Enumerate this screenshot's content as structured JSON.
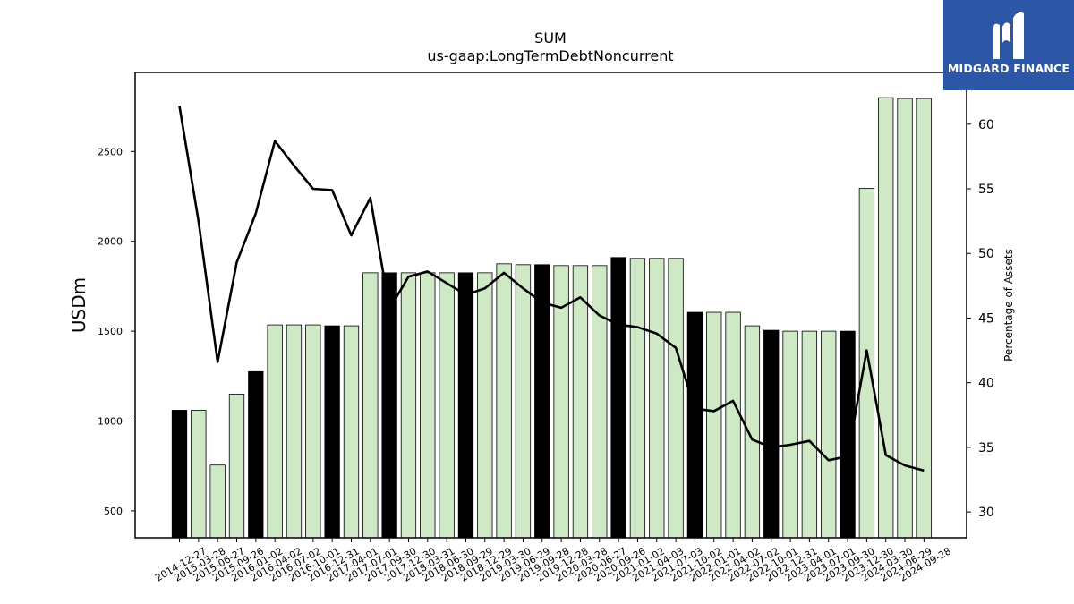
{
  "brand": {
    "name": "MIDGARD FINANCE",
    "logo_color": "#2b57a6"
  },
  "chart_data": {
    "type": "bar",
    "title": "SUM",
    "subtitle": "us-gaap:LongTermDebtNoncurrent",
    "ylabel": "USDm",
    "y2label": "Percentage of Assets",
    "ylim": [
      350,
      2940
    ],
    "y2lim": [
      28,
      64
    ],
    "yticks": [
      500,
      1000,
      1500,
      2000,
      2500
    ],
    "y2ticks": [
      30,
      35,
      40,
      45,
      50,
      55,
      60
    ],
    "categories": [
      "2014-12-27",
      "2015-03-28",
      "2015-06-27",
      "2015-09-26",
      "2016-01-02",
      "2016-04-02",
      "2016-07-02",
      "2016-10-01",
      "2016-12-31",
      "2017-04-01",
      "2017-07-01",
      "2017-09-30",
      "2017-12-30",
      "2018-03-31",
      "2018-06-30",
      "2018-09-29",
      "2018-12-29",
      "2019-03-30",
      "2019-06-29",
      "2019-09-28",
      "2019-12-28",
      "2020-03-28",
      "2020-06-27",
      "2020-09-26",
      "2021-01-02",
      "2021-04-03",
      "2021-07-03",
      "2021-10-02",
      "2022-01-01",
      "2022-04-02",
      "2022-07-02",
      "2022-10-01",
      "2022-12-31",
      "2023-04-01",
      "2023-07-01",
      "2023-09-30",
      "2023-12-30",
      "2024-03-30",
      "2024-06-29",
      "2024-09-28"
    ],
    "series": [
      {
        "kind": "bar",
        "axis": "left",
        "values": [
          1060,
          1060,
          755,
          1150,
          1275,
          1535,
          1535,
          1535,
          1530,
          1530,
          1825,
          1825,
          1825,
          1825,
          1825,
          1825,
          1825,
          1875,
          1870,
          1870,
          1865,
          1865,
          1865,
          1910,
          1905,
          1905,
          1905,
          1605,
          1605,
          1605,
          1530,
          1505,
          1500,
          1500,
          1500,
          1500,
          2295,
          2800,
          2795,
          2795
        ],
        "highlight": [
          true,
          false,
          false,
          false,
          true,
          false,
          false,
          false,
          true,
          false,
          false,
          true,
          false,
          false,
          false,
          true,
          false,
          false,
          false,
          true,
          false,
          false,
          false,
          true,
          false,
          false,
          false,
          true,
          false,
          false,
          false,
          true,
          false,
          false,
          false,
          true,
          false,
          false,
          false,
          false
        ]
      },
      {
        "kind": "line",
        "axis": "right",
        "values": [
          61.4,
          52.5,
          41.6,
          49.3,
          53.1,
          58.7,
          56.8,
          55.0,
          54.9,
          51.4,
          54.3,
          45.7,
          48.2,
          48.6,
          47.7,
          46.8,
          47.3,
          48.5,
          47.3,
          46.2,
          45.8,
          46.6,
          45.2,
          44.5,
          44.3,
          43.8,
          42.7,
          38.0,
          37.8,
          38.6,
          35.6,
          35.0,
          35.2,
          35.5,
          34.0,
          34.3,
          42.5,
          34.4,
          33.6,
          33.2
        ]
      }
    ],
    "colors": {
      "bar_fill": "#cfe9c7",
      "bar_highlight": "#000000",
      "bar_edge": "#000000",
      "line": "#000000"
    },
    "grid": false
  }
}
